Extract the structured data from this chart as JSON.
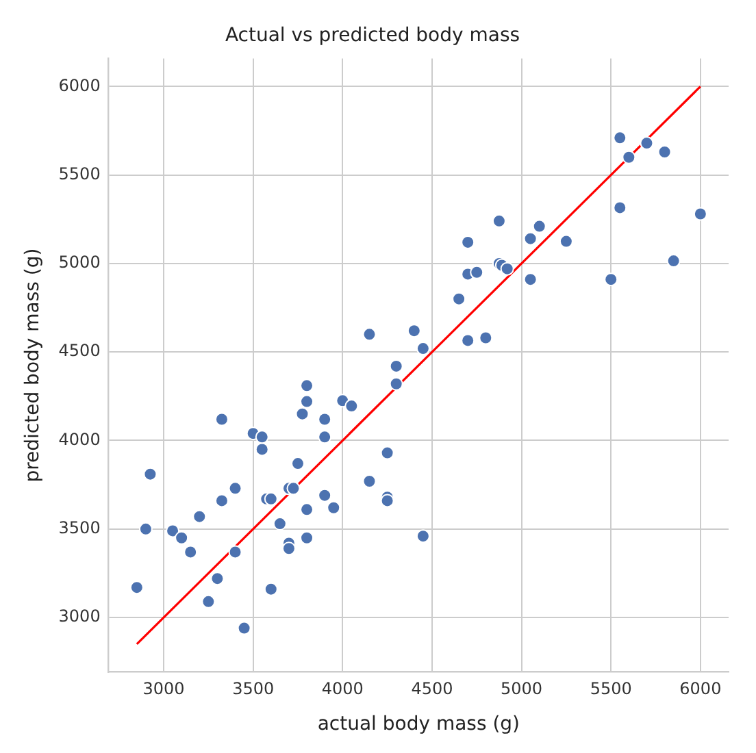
{
  "chart_data": {
    "type": "scatter",
    "title": "Actual vs predicted body mass",
    "xlabel": "actual body mass (g)",
    "ylabel": "predicted body mass (g)",
    "xlim": [
      2692.5,
      6157.5
    ],
    "ylim": [
      2692.5,
      6157.5
    ],
    "xticks": [
      3000,
      3500,
      4000,
      4500,
      5000,
      5500,
      6000
    ],
    "yticks": [
      3000,
      3500,
      4000,
      4500,
      5000,
      5500,
      6000
    ],
    "grid": true,
    "series": [
      {
        "type": "scatter",
        "marker": "circle",
        "color": "#4c72b0",
        "x": [
          2850,
          2900,
          2925,
          3050,
          3100,
          3150,
          3200,
          3250,
          3300,
          3325,
          3325,
          3400,
          3400,
          3450,
          3500,
          3550,
          3550,
          3575,
          3600,
          3600,
          3650,
          3700,
          3725,
          3700,
          3700,
          3750,
          3775,
          3800,
          3800,
          3800,
          3800,
          3900,
          3900,
          3900,
          3950,
          4000,
          4050,
          4150,
          4150,
          4250,
          4250,
          4250,
          4300,
          4300,
          4400,
          4450,
          4450,
          4650,
          4700,
          4700,
          4750,
          4700,
          4800,
          4875,
          4875,
          4890,
          4920,
          5050,
          5050,
          5100,
          5250,
          5500,
          5550,
          5550,
          5600,
          5700,
          5800,
          5850,
          6000
        ],
        "values": [
          3170,
          3500,
          3810,
          3490,
          3450,
          3370,
          3570,
          3090,
          3220,
          3660,
          4120,
          3730,
          3370,
          2940,
          4040,
          3950,
          4020,
          3670,
          3670,
          3160,
          3530,
          3730,
          3730,
          3420,
          3390,
          3870,
          4150,
          4220,
          4310,
          3610,
          3450,
          3690,
          4120,
          4020,
          3620,
          4225,
          4195,
          3770,
          4600,
          3930,
          3680,
          3660,
          4420,
          4320,
          4620,
          4520,
          3460,
          4800,
          5120,
          4940,
          4950,
          4565,
          4580,
          5240,
          5000,
          4990,
          4970,
          5140,
          4910,
          5210,
          5125,
          4910,
          5710,
          5315,
          5600,
          5680,
          5630,
          5015,
          5280
        ]
      },
      {
        "type": "line",
        "marker": "none",
        "line_style": "solid",
        "color": "#ff0000",
        "x": [
          2850,
          6000
        ],
        "values": [
          2850,
          6000
        ]
      }
    ]
  }
}
